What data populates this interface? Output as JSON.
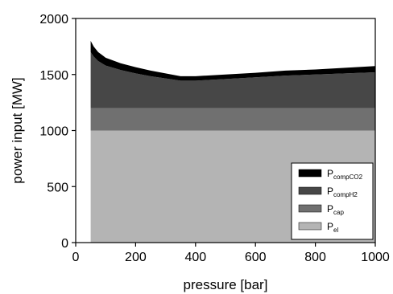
{
  "chart_data": {
    "type": "area",
    "stacked": true,
    "title": "",
    "xlabel": "pressure [bar]",
    "ylabel": "power input [MW]",
    "xlim": [
      0,
      1000
    ],
    "ylim": [
      0,
      2000
    ],
    "xticks": [
      0,
      200,
      400,
      600,
      800,
      1000
    ],
    "yticks": [
      0,
      500,
      1000,
      1500,
      2000
    ],
    "grid": false,
    "legend_position": "bottom-right",
    "x": [
      50,
      60,
      75,
      100,
      150,
      200,
      250,
      300,
      350,
      400,
      500,
      600,
      700,
      800,
      900,
      1000
    ],
    "series": [
      {
        "name": "P_el",
        "label_main": "P",
        "label_sub": "el",
        "color": "#b4b4b4",
        "values": [
          1000,
          1000,
          1000,
          1000,
          1000,
          1000,
          1000,
          1000,
          1000,
          1000,
          1000,
          1000,
          1000,
          1000,
          1000,
          1000
        ]
      },
      {
        "name": "P_cap",
        "label_main": "P",
        "label_sub": "cap",
        "color": "#707070",
        "values": [
          200,
          200,
          200,
          200,
          200,
          200,
          200,
          200,
          200,
          200,
          200,
          200,
          200,
          200,
          200,
          200
        ]
      },
      {
        "name": "P_compH2",
        "label_main": "P",
        "label_sub": "compH2",
        "color": "#474747",
        "values": [
          500,
          460,
          420,
          380,
          340,
          310,
          285,
          265,
          245,
          245,
          260,
          275,
          290,
          300,
          310,
          320
        ]
      },
      {
        "name": "P_compCO2",
        "label_main": "P",
        "label_sub": "compCO2",
        "color": "#000000",
        "values": [
          100,
          90,
          80,
          70,
          60,
          55,
          50,
          45,
          40,
          40,
          40,
          40,
          45,
          45,
          50,
          55
        ]
      }
    ]
  }
}
